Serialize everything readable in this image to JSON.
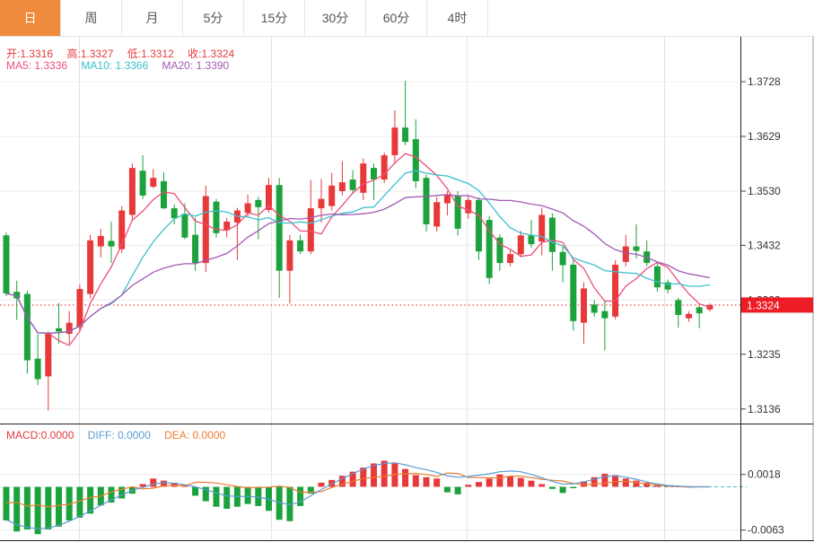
{
  "tabs": {
    "items": [
      {
        "key": "day",
        "label": "日",
        "active": true
      },
      {
        "key": "week",
        "label": "周",
        "active": false
      },
      {
        "key": "month",
        "label": "月",
        "active": false
      },
      {
        "key": "5min",
        "label": "5分",
        "active": false
      },
      {
        "key": "15min",
        "label": "15分",
        "active": false
      },
      {
        "key": "30min",
        "label": "30分",
        "active": false
      },
      {
        "key": "60min",
        "label": "60分",
        "active": false
      },
      {
        "key": "4hour",
        "label": "4时",
        "active": false
      }
    ]
  },
  "ohlc": {
    "open": {
      "label": "开:",
      "value": "1.3316"
    },
    "high": {
      "label": "高:",
      "value": "1.3327"
    },
    "low": {
      "label": "低:",
      "value": "1.3312"
    },
    "close": {
      "label": "收:",
      "value": "1.3324"
    }
  },
  "ma": {
    "ma5": {
      "label": "MA5:",
      "value": "1.3336"
    },
    "ma10": {
      "label": "MA10:",
      "value": "1.3366"
    },
    "ma20": {
      "label": "MA20:",
      "value": "1.3390"
    }
  },
  "indicator": {
    "macd": {
      "label": "MACD:",
      "value": "0.0000"
    },
    "diff": {
      "label": "DIFF:",
      "value": "0.0000"
    },
    "dea": {
      "label": "DEA:",
      "value": "0.0000"
    }
  },
  "colors": {
    "accent_orange": "#f08b3d",
    "up_red": "#e8393a",
    "down_green": "#1ca23c",
    "ma5_pink": "#ed4e79",
    "ma10_cyan": "#3fc0cd",
    "ma20_purple": "#a259b4",
    "diff_blue": "#5b9bd5",
    "dea_orange": "#ed7d31",
    "badge_red": "#ee1c25",
    "dotted_line_red": "#f75454",
    "grid": "#ececec",
    "axis_text": "#333333"
  },
  "chart_data": {
    "type": "candlestick_with_macd",
    "legend_position": "top-left",
    "grid": true,
    "price_axis": {
      "ticks": [
        1.3728,
        1.3629,
        1.353,
        1.3432,
        1.3333,
        1.3235,
        1.3136
      ],
      "min": 1.3136,
      "max": 1.3728
    },
    "last_price": 1.3324,
    "ma_periods": [
      5,
      10,
      20
    ],
    "candles": [
      [
        1.345,
        1.3455,
        1.334,
        1.3345
      ],
      [
        1.3348,
        1.3368,
        1.3297,
        1.3336
      ],
      [
        1.3344,
        1.335,
        1.32,
        1.3224
      ],
      [
        1.3227,
        1.3272,
        1.3179,
        1.319
      ],
      [
        1.3195,
        1.3276,
        1.3133,
        1.3272
      ],
      [
        1.3282,
        1.3328,
        1.3254,
        1.3276
      ],
      [
        1.3272,
        1.3313,
        1.3254,
        1.3292
      ],
      [
        1.3284,
        1.3361,
        1.3276,
        1.3353
      ],
      [
        1.3344,
        1.3451,
        1.3336,
        1.3441
      ],
      [
        1.343,
        1.3462,
        1.341,
        1.3449
      ],
      [
        1.344,
        1.3475,
        1.34,
        1.343
      ],
      [
        1.3425,
        1.3503,
        1.3418,
        1.3495
      ],
      [
        1.3487,
        1.358,
        1.3478,
        1.3572
      ],
      [
        1.3567,
        1.3595,
        1.3516,
        1.3522
      ],
      [
        1.3538,
        1.357,
        1.3535,
        1.3554
      ],
      [
        1.3548,
        1.3564,
        1.3497,
        1.3499
      ],
      [
        1.3499,
        1.3506,
        1.347,
        1.3481
      ],
      [
        1.3489,
        1.3508,
        1.3443,
        1.3446
      ],
      [
        1.3451,
        1.3482,
        1.3386,
        1.34
      ],
      [
        1.34,
        1.354,
        1.3384,
        1.3521
      ],
      [
        1.3511,
        1.3516,
        1.3446,
        1.3454
      ],
      [
        1.3459,
        1.3482,
        1.3446,
        1.3475
      ],
      [
        1.3473,
        1.35,
        1.3405,
        1.3495
      ],
      [
        1.3491,
        1.3524,
        1.3482,
        1.3508
      ],
      [
        1.3514,
        1.352,
        1.3443,
        1.3501
      ],
      [
        1.3496,
        1.3554,
        1.3491,
        1.3541
      ],
      [
        1.3541,
        1.3554,
        1.3337,
        1.3386
      ],
      [
        1.3386,
        1.3451,
        1.3327,
        1.3441
      ],
      [
        1.3441,
        1.3451,
        1.3416,
        1.3421
      ],
      [
        1.3421,
        1.355,
        1.3416,
        1.3499
      ],
      [
        1.3499,
        1.3552,
        1.3473,
        1.3516
      ],
      [
        1.3503,
        1.3563,
        1.3495,
        1.354
      ],
      [
        1.353,
        1.3584,
        1.3522,
        1.3546
      ],
      [
        1.3551,
        1.3568,
        1.3525,
        1.3532
      ],
      [
        1.3527,
        1.3589,
        1.3514,
        1.358
      ],
      [
        1.3572,
        1.358,
        1.3514,
        1.3551
      ],
      [
        1.3551,
        1.36,
        1.3545,
        1.3595
      ],
      [
        1.3595,
        1.3676,
        1.358,
        1.3645
      ],
      [
        1.3645,
        1.373,
        1.3613,
        1.3619
      ],
      [
        1.3624,
        1.366,
        1.3535,
        1.3548
      ],
      [
        1.3554,
        1.356,
        1.3457,
        1.347
      ],
      [
        1.3466,
        1.3519,
        1.3457,
        1.351
      ],
      [
        1.3508,
        1.353,
        1.3486,
        1.3524
      ],
      [
        1.3521,
        1.353,
        1.345,
        1.3462
      ],
      [
        1.349,
        1.3521,
        1.348,
        1.3514
      ],
      [
        1.3514,
        1.3519,
        1.3405,
        1.3421
      ],
      [
        1.3478,
        1.3485,
        1.3362,
        1.3373
      ],
      [
        1.3446,
        1.3452,
        1.3386,
        1.34
      ],
      [
        1.34,
        1.3426,
        1.3394,
        1.3416
      ],
      [
        1.3416,
        1.3458,
        1.341,
        1.345
      ],
      [
        1.345,
        1.3478,
        1.3428,
        1.3434
      ],
      [
        1.3439,
        1.35,
        1.3414,
        1.3487
      ],
      [
        1.3482,
        1.349,
        1.3386,
        1.342
      ],
      [
        1.342,
        1.343,
        1.3365,
        1.3396
      ],
      [
        1.3397,
        1.3405,
        1.3278,
        1.3295
      ],
      [
        1.3292,
        1.3365,
        1.3254,
        1.3354
      ],
      [
        1.3325,
        1.3333,
        1.3303,
        1.331
      ],
      [
        1.3313,
        1.3333,
        1.3242,
        1.33
      ],
      [
        1.3303,
        1.3405,
        1.3298,
        1.3397
      ],
      [
        1.3402,
        1.3451,
        1.3394,
        1.343
      ],
      [
        1.343,
        1.347,
        1.3408,
        1.3422
      ],
      [
        1.3421,
        1.3441,
        1.3394,
        1.34
      ],
      [
        1.3394,
        1.34,
        1.3348,
        1.3356
      ],
      [
        1.3365,
        1.337,
        1.3345,
        1.3352
      ],
      [
        1.3333,
        1.3337,
        1.3283,
        1.3306
      ],
      [
        1.33,
        1.3313,
        1.3294,
        1.3308
      ],
      [
        1.332,
        1.3322,
        1.3282,
        1.3309
      ],
      [
        1.3316,
        1.3327,
        1.3312,
        1.3324
      ]
    ],
    "macd": {
      "axis_ticks": [
        0.0018,
        -0.0063
      ],
      "hist": [
        -0.0049,
        -0.0065,
        -0.0062,
        -0.0069,
        -0.0062,
        -0.0058,
        -0.0049,
        -0.0045,
        -0.0039,
        -0.0027,
        -0.0023,
        -0.0017,
        -0.001,
        0.0004,
        0.0012,
        0.0009,
        0.0006,
        0.0003,
        -0.0013,
        -0.0021,
        -0.0029,
        -0.0032,
        -0.0029,
        -0.0025,
        -0.0028,
        -0.0035,
        -0.0048,
        -0.005,
        -0.0028,
        -0.001,
        0.0006,
        0.001,
        0.0016,
        0.0022,
        0.0028,
        0.0034,
        0.0038,
        0.0034,
        0.0026,
        0.0017,
        0.0014,
        0.0012,
        -0.0008,
        -0.0011,
        0.0003,
        0.0007,
        0.0012,
        0.0018,
        0.0015,
        0.0013,
        0.0009,
        0.0004,
        -0.0003,
        -0.0009,
        -0.0002,
        0.0008,
        0.0014,
        0.0019,
        0.0017,
        0.0012,
        0.0009,
        0.0006,
        0.0003,
        0.0002,
        0.0001,
        0.0001,
        0.0,
        0.0
      ],
      "diff": [
        -0.0048,
        -0.0055,
        -0.0059,
        -0.0061,
        -0.006,
        -0.0056,
        -0.005,
        -0.0043,
        -0.0035,
        -0.0027,
        -0.0019,
        -0.0012,
        -0.0005,
        -0.0001,
        0.0004,
        0.0006,
        0.0005,
        0.0003,
        0.0,
        -0.0004,
        -0.0009,
        -0.0013,
        -0.0014,
        -0.0014,
        -0.0015,
        -0.0018,
        -0.0023,
        -0.0026,
        -0.0022,
        -0.0013,
        -0.0004,
        0.0004,
        0.0012,
        0.0019,
        0.0026,
        0.0031,
        0.0034,
        0.0035,
        0.0032,
        0.0028,
        0.0025,
        0.0021,
        0.0016,
        0.0014,
        0.0015,
        0.0017,
        0.0019,
        0.0022,
        0.0023,
        0.0022,
        0.0018,
        0.0013,
        0.0008,
        0.0004,
        0.0004,
        0.0007,
        0.0011,
        0.0015,
        0.0016,
        0.0014,
        0.0011,
        0.0007,
        0.0004,
        0.0002,
        0.0001,
        0.0,
        0.0,
        0.0
      ]
    }
  }
}
